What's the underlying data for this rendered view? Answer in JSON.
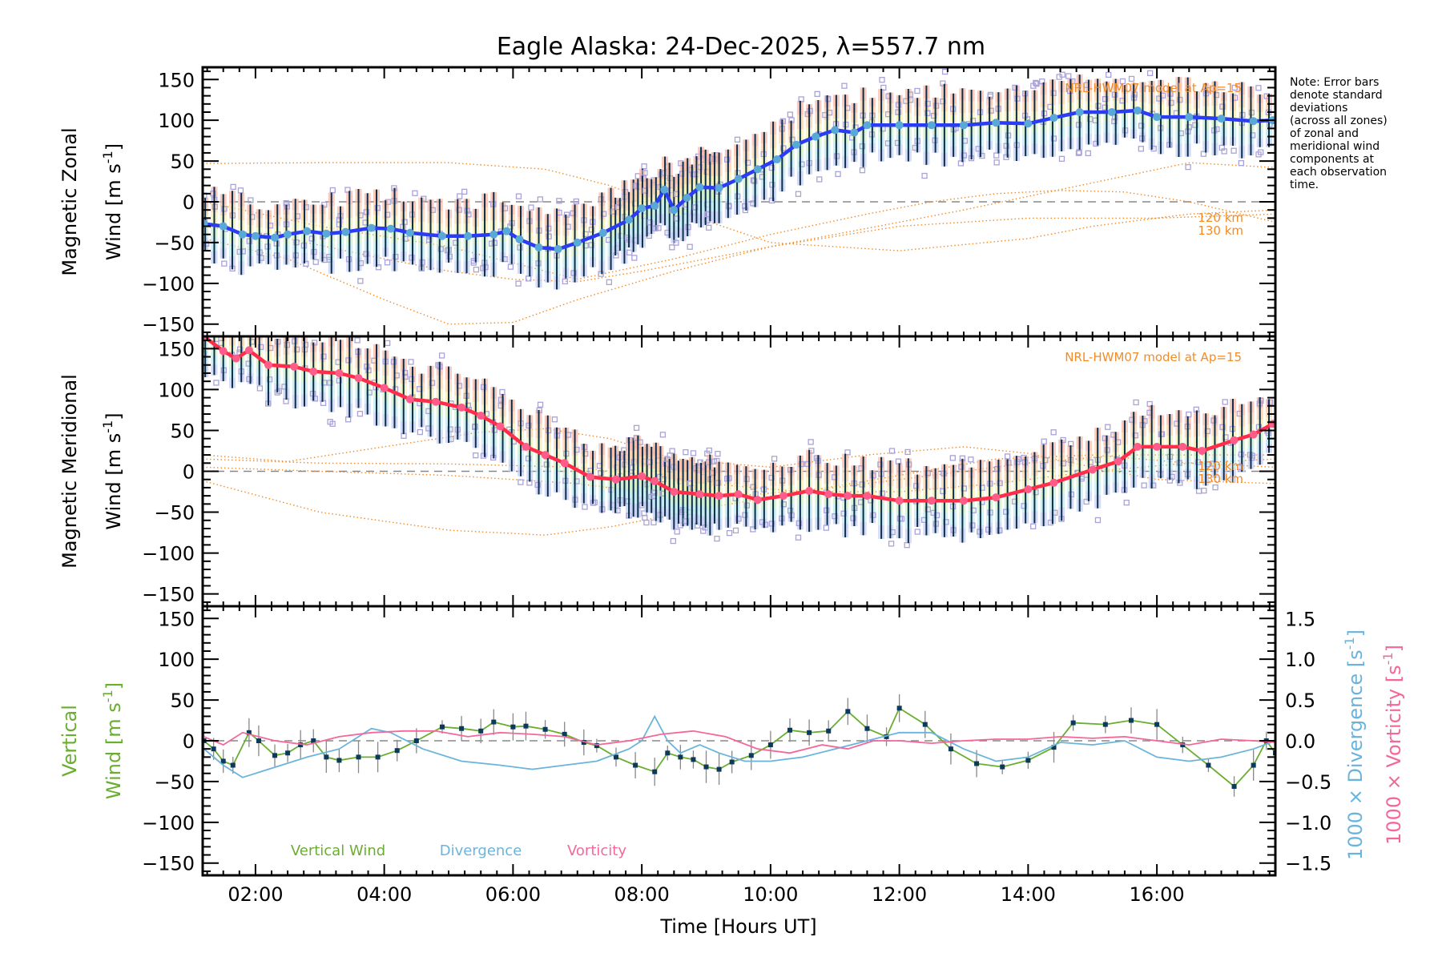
{
  "title": "Eagle Alaska: 24-Dec-2025, λ=557.7 nm",
  "note_lines": [
    "Note: Error bars",
    "denote standard",
    "deviations",
    "(across all zones)",
    "of zonal and",
    "meridional wind",
    "components at",
    "each observation",
    "time."
  ],
  "colors": {
    "zonal_mean": "#2a3df5",
    "zonal_marker": "#5aa8d8",
    "meridional_mean": "#ff2d4a",
    "meridional_marker": "#ff5c8a",
    "errorbar": "#0b2f4a",
    "scatter": "#a9a3d9",
    "model": "#f28c28",
    "vertical": "#6aae2f",
    "vertical_marker": "#0c3a5c",
    "divergence": "#6ab4dc",
    "vorticity": "#f4679b",
    "zero_line": "#888888",
    "band": [
      "#f7b7a6",
      "#f9d0a8",
      "#f3efb0",
      "#cdeec8",
      "#bfeaf0",
      "#c6cff5"
    ]
  },
  "chart_data": [
    {
      "type": "line",
      "panel": "zonal",
      "ylabel_line1": "Magnetic Zonal",
      "ylabel_line2": "Wind [m s",
      "ylabel_sup": "-1",
      "ylabel_close": "]",
      "ylim": [
        -165,
        165
      ],
      "yticks": [
        150,
        100,
        50,
        0,
        -50,
        -100,
        -150
      ],
      "ytick_labels": [
        "150",
        "100",
        "50",
        "0",
        "−50",
        "−100",
        "−150"
      ],
      "model_label": "NRL-HWM07 model at Ap=15",
      "model_alt_labels": [
        "120 km",
        "130 km"
      ],
      "mean_series": {
        "name": "Zonal mean",
        "x": [
          1.2,
          1.5,
          1.8,
          2.0,
          2.3,
          2.5,
          2.8,
          3.1,
          3.4,
          3.8,
          4.1,
          4.4,
          4.9,
          5.3,
          5.7,
          5.9,
          6.1,
          6.4,
          6.7,
          7.0,
          7.4,
          7.8,
          8.0,
          8.2,
          8.35,
          8.5,
          8.7,
          8.9,
          9.2,
          9.5,
          9.8,
          10.1,
          10.4,
          10.7,
          11.0,
          11.3,
          11.5,
          12.0,
          12.5,
          13.0,
          13.5,
          14.0,
          14.4,
          14.8,
          15.3,
          15.7,
          16.0,
          16.5,
          17.0,
          17.5,
          17.8
        ],
        "y": [
          -27,
          -30,
          -40,
          -42,
          -44,
          -40,
          -36,
          -39,
          -37,
          -32,
          -33,
          -38,
          -42,
          -42,
          -40,
          -36,
          -46,
          -56,
          -58,
          -50,
          -38,
          -22,
          -8,
          -5,
          15,
          -10,
          5,
          18,
          17,
          28,
          40,
          52,
          70,
          80,
          88,
          85,
          94,
          94,
          94,
          94,
          97,
          96,
          103,
          110,
          110,
          112,
          104,
          104,
          102,
          99,
          100
        ]
      },
      "error_sd": 40,
      "model_series": [
        {
          "name": "model-a",
          "x": [
            1.2,
            3,
            5,
            6.5,
            7.5,
            8.5,
            10,
            12,
            14,
            15,
            16.5,
            17.84
          ],
          "y": [
            47,
            48,
            48,
            40,
            20,
            -10,
            -50,
            -60,
            -45,
            -30,
            -15,
            -10
          ]
        },
        {
          "name": "model-b",
          "x": [
            1.2,
            2.5,
            4,
            5,
            6,
            7,
            8,
            9,
            11,
            13,
            14.5,
            16.5,
            17.84
          ],
          "y": [
            -30,
            -45,
            -70,
            -85,
            -95,
            -98,
            -85,
            -70,
            -40,
            -10,
            15,
            48,
            42
          ]
        },
        {
          "name": "model-c",
          "x": [
            1.2,
            2.5,
            4,
            5,
            6,
            7,
            8.5,
            10,
            12,
            14,
            15,
            16,
            17.84
          ],
          "y": [
            -45,
            -70,
            -120,
            -150,
            -148,
            -120,
            -85,
            -55,
            -30,
            -20,
            -20,
            -20,
            -15
          ]
        },
        {
          "name": "model-d",
          "x": [
            1.2,
            3,
            5,
            7,
            8.5,
            10,
            11.5,
            12.5,
            13.5,
            14.5,
            15.5,
            16.5,
            17.84
          ],
          "y": [
            0,
            -30,
            -55,
            -95,
            -70,
            -40,
            -15,
            0,
            10,
            14,
            12,
            0,
            -25
          ]
        }
      ]
    },
    {
      "type": "line",
      "panel": "meridional",
      "ylabel_line1": "Magnetic Meridional",
      "ylabel_line2": "Wind [m s",
      "ylabel_sup": "-1",
      "ylabel_close": "]",
      "ylim": [
        -165,
        165
      ],
      "yticks": [
        150,
        100,
        50,
        0,
        -50,
        -100,
        -150
      ],
      "ytick_labels": [
        "150",
        "100",
        "50",
        "0",
        "−50",
        "−100",
        "−150"
      ],
      "model_label": "NRL-HWM07 model at Ap=15",
      "model_alt_labels": [
        "120 km",
        "130 km"
      ],
      "mean_series": {
        "name": "Meridional mean",
        "x": [
          1.2,
          1.5,
          1.7,
          1.9,
          2.2,
          2.6,
          2.9,
          3.3,
          3.6,
          4.0,
          4.4,
          4.8,
          5.2,
          5.5,
          5.8,
          6.2,
          6.5,
          6.8,
          7.2,
          7.6,
          8.0,
          8.2,
          8.5,
          8.9,
          9.2,
          9.5,
          9.8,
          10.2,
          10.6,
          10.9,
          11.2,
          11.5,
          12.0,
          12.5,
          13.0,
          13.5,
          14.0,
          14.4,
          15.0,
          15.4,
          15.7,
          16.0,
          16.4,
          16.7,
          17.2,
          17.5,
          17.8
        ],
        "y": [
          165,
          147,
          138,
          148,
          130,
          128,
          122,
          120,
          114,
          102,
          88,
          85,
          78,
          68,
          55,
          30,
          20,
          10,
          -7,
          -10,
          -6,
          -12,
          -25,
          -28,
          -30,
          -28,
          -35,
          -30,
          -24,
          -28,
          -30,
          -30,
          -36,
          -36,
          -36,
          -32,
          -22,
          -14,
          2,
          12,
          30,
          30,
          30,
          25,
          38,
          45,
          58
        ]
      },
      "error_sd": 40,
      "model_series": [
        {
          "name": "model-a",
          "x": [
            1.2,
            2.5,
            4,
            5.5,
            6.5,
            7.5,
            8.5,
            10,
            11.5,
            13,
            14,
            15,
            16,
            17.84
          ],
          "y": [
            20,
            12,
            30,
            48,
            52,
            40,
            15,
            5,
            20,
            30,
            22,
            5,
            -10,
            -15
          ]
        },
        {
          "name": "model-b",
          "x": [
            1.2,
            3,
            5,
            6.5,
            7.5,
            9,
            10.5,
            12,
            13.5,
            15,
            16.5,
            17.84
          ],
          "y": [
            -12,
            -50,
            -72,
            -78,
            -68,
            -45,
            -25,
            -5,
            15,
            20,
            10,
            5
          ]
        },
        {
          "name": "model-c",
          "x": [
            1.2,
            3,
            5,
            7,
            8,
            9,
            10.5,
            12,
            13.5,
            15,
            16.5,
            17.84
          ],
          "y": [
            15,
            10,
            9,
            5,
            -5,
            -15,
            -25,
            -25,
            -15,
            0,
            10,
            15
          ]
        },
        {
          "name": "model-d",
          "x": [
            1.2,
            3,
            5,
            7,
            8,
            9.5,
            11,
            12.5,
            14,
            15.5,
            16.5,
            17.84
          ],
          "y": [
            5,
            0,
            -5,
            -15,
            -25,
            -30,
            -20,
            -5,
            10,
            20,
            20,
            20
          ]
        }
      ]
    },
    {
      "type": "line",
      "panel": "vertical",
      "ylabel_line1": "Vertical",
      "ylabel_line2": "Wind [m s",
      "ylabel_sup": "-1",
      "ylabel_close": "]",
      "ylim": [
        -165,
        165
      ],
      "yticks": [
        150,
        100,
        50,
        0,
        -50,
        -100,
        -150
      ],
      "ytick_labels": [
        "150",
        "100",
        "50",
        "0",
        "−50",
        "−100",
        "−150"
      ],
      "right_ylim": [
        -1.65,
        1.65
      ],
      "right_yticks": [
        1.5,
        1.0,
        0.5,
        0.0,
        -0.5,
        -1.0,
        -1.5
      ],
      "right_ytick_labels": [
        "1.5",
        "1.0",
        "0.5",
        "0.0",
        "−0.5",
        "−1.0",
        "−1.5"
      ],
      "right_ylabel_div": "1000 × Divergence [s",
      "right_ylabel_vort": "1000 × Vorticity [s",
      "right_ylabel_sup": "-1",
      "right_ylabel_close": "]",
      "legend": [
        "Vertical Wind",
        "Divergence",
        "Vorticity"
      ],
      "series": [
        {
          "name": "Vertical Wind",
          "axis": "left",
          "x": [
            1.2,
            1.35,
            1.5,
            1.65,
            1.9,
            2.05,
            2.3,
            2.5,
            2.7,
            2.9,
            3.1,
            3.3,
            3.6,
            3.9,
            4.2,
            4.5,
            4.9,
            5.2,
            5.5,
            5.7,
            6.0,
            6.2,
            6.5,
            6.8,
            7.1,
            7.3,
            7.6,
            7.9,
            8.2,
            8.4,
            8.6,
            8.8,
            9.0,
            9.2,
            9.4,
            9.7,
            10.0,
            10.3,
            10.6,
            10.9,
            11.2,
            11.5,
            11.8,
            12.0,
            12.4,
            12.8,
            13.2,
            13.6,
            14.0,
            14.4,
            14.7,
            15.2,
            15.6,
            16.0,
            16.4,
            16.8,
            17.2,
            17.5,
            17.7,
            17.84
          ],
          "y": [
            0,
            -10,
            -25,
            -30,
            10,
            0,
            -18,
            -15,
            -5,
            0,
            -20,
            -24,
            -20,
            -20,
            -12,
            0,
            17,
            15,
            12,
            23,
            17,
            18,
            14,
            8,
            -2,
            -6,
            -20,
            -30,
            -38,
            -15,
            -20,
            -23,
            -32,
            -35,
            -26,
            -18,
            -5,
            13,
            10,
            12,
            36,
            15,
            5,
            40,
            20,
            -10,
            -28,
            -32,
            -24,
            -8,
            22,
            20,
            25,
            20,
            -5,
            -30,
            -56,
            -30,
            0,
            -15
          ]
        },
        {
          "name": "Divergence",
          "axis": "right",
          "x": [
            1.2,
            1.5,
            1.8,
            2.2,
            2.8,
            3.3,
            3.8,
            4.1,
            4.6,
            5.2,
            5.8,
            6.3,
            6.8,
            7.3,
            7.8,
            8.0,
            8.2,
            8.4,
            8.6,
            8.9,
            9.2,
            9.6,
            10.0,
            10.5,
            11.0,
            11.5,
            12.0,
            12.5,
            13.0,
            13.5,
            14.0,
            14.5,
            15.0,
            15.5,
            16.0,
            16.5,
            17.0,
            17.5,
            17.84
          ],
          "y": [
            -0.1,
            -0.3,
            -0.45,
            -0.35,
            -0.2,
            -0.1,
            0.15,
            0.1,
            -0.1,
            -0.25,
            -0.3,
            -0.35,
            -0.3,
            -0.25,
            -0.1,
            0.0,
            0.3,
            0.0,
            -0.15,
            -0.05,
            -0.15,
            -0.25,
            -0.25,
            -0.2,
            -0.1,
            0.0,
            0.1,
            0.1,
            -0.1,
            -0.25,
            -0.2,
            -0.02,
            -0.05,
            0.0,
            -0.2,
            -0.25,
            -0.2,
            -0.1,
            0.0
          ]
        },
        {
          "name": "Vorticity",
          "axis": "right",
          "x": [
            1.2,
            1.5,
            1.8,
            2.3,
            2.8,
            3.3,
            3.8,
            4.3,
            4.8,
            5.3,
            5.8,
            6.3,
            6.8,
            7.3,
            7.8,
            8.3,
            8.8,
            9.3,
            9.8,
            10.3,
            10.8,
            11.2,
            11.6,
            12.0,
            12.5,
            13.0,
            13.5,
            14.0,
            14.5,
            15.0,
            15.5,
            16.0,
            16.5,
            17.0,
            17.5,
            17.84
          ],
          "y": [
            0.05,
            -0.05,
            0.1,
            0.0,
            -0.05,
            0.05,
            0.1,
            0.12,
            0.12,
            0.05,
            0.1,
            0.08,
            0.05,
            -0.05,
            0.0,
            0.08,
            0.12,
            0.05,
            -0.1,
            -0.15,
            -0.05,
            -0.1,
            0.0,
            0.0,
            -0.03,
            0.0,
            0.02,
            0.02,
            0.05,
            0.03,
            0.05,
            0.0,
            -0.05,
            0.02,
            0.0,
            -0.02
          ]
        }
      ]
    }
  ],
  "xaxis": {
    "xlim": [
      1.18,
      17.84
    ],
    "ticks": [
      2,
      4,
      6,
      8,
      10,
      12,
      14,
      16
    ],
    "tick_labels": [
      "02:00",
      "04:00",
      "06:00",
      "08:00",
      "10:00",
      "12:00",
      "14:00",
      "16:00"
    ],
    "label": "Time [Hours UT]"
  }
}
